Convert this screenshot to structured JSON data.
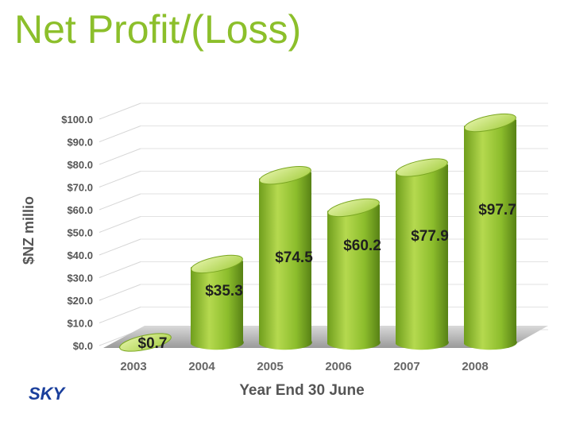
{
  "slide": {
    "title": "Net Profit/(Loss)",
    "logo_text": "SKY"
  },
  "colors": {
    "title": "#8cbf2b",
    "bar_light": "#c3de62",
    "bar_mid": "#86b52a",
    "bar_dark": "#4e7a12",
    "logo": "#1a3f9c",
    "text": "#444444"
  },
  "chart_data": {
    "type": "bar",
    "categories": [
      "2003",
      "2004",
      "2005",
      "2006",
      "2007",
      "2008"
    ],
    "values": [
      0.7,
      35.3,
      74.5,
      60.2,
      77.9,
      97.7
    ],
    "data_labels": [
      "$0.7",
      "$35.3",
      "$74.5",
      "$60.2",
      "$77.9",
      "$97.7"
    ],
    "ylabel": "$NZ millio",
    "xlabel": "Year End 30 June",
    "ylim": [
      0,
      100
    ],
    "yticks": [
      "$0.0",
      "$10.0",
      "$20.0",
      "$30.0",
      "$40.0",
      "$50.0",
      "$60.0",
      "$70.0",
      "$80.0",
      "$90.0",
      "$100.0"
    ],
    "grid": true,
    "legend": "none"
  }
}
